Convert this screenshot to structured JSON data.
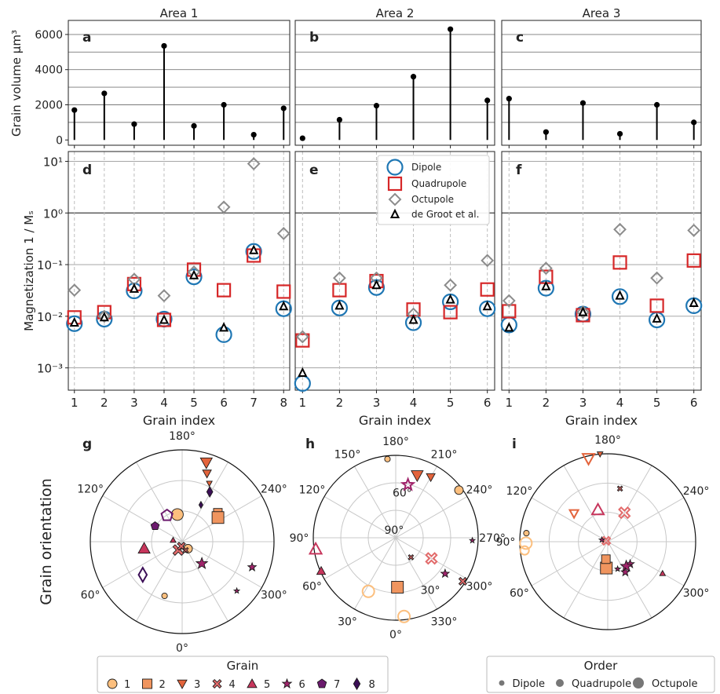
{
  "chart_data": {
    "type": "composite",
    "panels_top": [
      {
        "letter": "a",
        "title": "Area 1",
        "x": [
          1,
          2,
          3,
          4,
          5,
          6,
          7,
          8
        ],
        "volume": [
          1700,
          2650,
          900,
          5350,
          800,
          2000,
          300,
          1800
        ]
      },
      {
        "letter": "b",
        "title": "Area 2",
        "x": [
          1,
          2,
          3,
          4,
          5,
          6
        ],
        "volume": [
          100,
          1150,
          1950,
          3600,
          6300,
          2250
        ]
      },
      {
        "letter": "c",
        "title": "Area 3",
        "x": [
          1,
          2,
          3,
          4,
          5,
          6
        ],
        "volume": [
          2350,
          450,
          2100,
          350,
          2000,
          1000
        ]
      }
    ],
    "top_ylabel": "Grain volume  µm³",
    "top_ylim": [
      -300,
      6800
    ],
    "top_yticks": [
      "0",
      "2000",
      "4000",
      "6000"
    ],
    "top_ytick_values": [
      0,
      2000,
      4000,
      6000
    ],
    "top_grid": [
      1000,
      2000,
      3000,
      4000,
      5000,
      6000
    ],
    "panels_mid": [
      {
        "letter": "d",
        "x": [
          1,
          2,
          3,
          4,
          5,
          6,
          7,
          8
        ],
        "dipole": [
          0.0072,
          0.0088,
          0.031,
          0.0088,
          0.058,
          0.0044,
          0.18,
          0.014
        ],
        "quadrupole": [
          0.0095,
          0.012,
          0.042,
          0.0085,
          0.08,
          0.032,
          0.15,
          0.03
        ],
        "octupole": [
          0.032,
          0.01,
          0.052,
          0.025,
          0.072,
          1.3,
          9.0,
          0.4
        ],
        "degroot": [
          0.0075,
          0.0095,
          0.034,
          0.0085,
          0.062,
          0.006,
          0.19,
          0.0155
        ]
      },
      {
        "letter": "e",
        "x": [
          1,
          2,
          3,
          4,
          5,
          6
        ],
        "dipole": [
          0.0005,
          0.0145,
          0.036,
          0.0075,
          0.019,
          0.014
        ],
        "quadrupole": [
          0.0034,
          0.032,
          0.048,
          0.0135,
          0.012,
          0.033
        ],
        "octupole": [
          0.004,
          0.055,
          0.055,
          0.011,
          0.04,
          0.12
        ],
        "degroot": [
          0.0008,
          0.016,
          0.04,
          0.0085,
          0.021,
          0.0155
        ]
      },
      {
        "letter": "f",
        "x": [
          1,
          2,
          3,
          4,
          5,
          6
        ],
        "dipole": [
          0.0068,
          0.035,
          0.011,
          0.024,
          0.0085,
          0.016
        ],
        "quadrupole": [
          0.0125,
          0.058,
          0.0105,
          0.11,
          0.016,
          0.12
        ],
        "octupole": [
          0.02,
          0.085,
          0.012,
          0.48,
          0.055,
          0.46
        ],
        "degroot": [
          0.006,
          0.038,
          0.012,
          0.025,
          0.009,
          0.018
        ]
      }
    ],
    "mid_ylabel": "Magnetization  1 / Mₛ",
    "mid_yticks": [
      "10⁻³",
      "10⁻²",
      "10⁻¹",
      "10⁰",
      "10¹"
    ],
    "mid_ytick_exps": [
      -3,
      -2,
      -1,
      0,
      1
    ],
    "mid_reference_line": 1,
    "mid_xlabel": "Grain index",
    "legend_mid": [
      "Dipole",
      "Quadrupole",
      "Octupole",
      "de Groot et al."
    ],
    "polar_ylabel": "Grain orientation",
    "polar_panels": [
      {
        "letter": "g",
        "theta_labels": [
          "180°",
          "120°",
          "60°",
          "0°",
          "300°",
          "240°"
        ],
        "theta_angles": [
          180,
          120,
          60,
          0,
          300,
          240
        ],
        "r_labels": [],
        "points": [
          {
            "grain": 1,
            "order": 3,
            "az": 170,
            "rad": 0.3
          },
          {
            "grain": 1,
            "order": 1,
            "az": 18,
            "rad": 0.62
          },
          {
            "grain": 1,
            "order": 2,
            "az": 320,
            "rad": 0.1
          },
          {
            "grain": 2,
            "order": 2,
            "az": 231,
            "rad": 0.5
          },
          {
            "grain": 2,
            "order": 3,
            "az": 236,
            "rad": 0.47
          },
          {
            "grain": 3,
            "order": 3,
            "az": 197,
            "rad": 0.9
          },
          {
            "grain": 3,
            "order": 2,
            "az": 200,
            "rad": 0.79
          },
          {
            "grain": 3,
            "order": 1,
            "az": 205,
            "rad": 0.7
          },
          {
            "grain": 4,
            "order": 3,
            "az": 25,
            "rad": 0.1
          },
          {
            "grain": 4,
            "order": 2,
            "az": 10,
            "rad": 0.05
          },
          {
            "grain": 4,
            "order": 1,
            "az": 337,
            "rad": 0.1
          },
          {
            "grain": 5,
            "order": 3,
            "az": 80,
            "rad": 0.42
          },
          {
            "grain": 5,
            "order": 1,
            "az": 100,
            "rad": 0.1
          },
          {
            "grain": 6,
            "order": 3,
            "az": 318,
            "rad": 0.32
          },
          {
            "grain": 6,
            "order": 1,
            "az": 312,
            "rad": 0.8
          },
          {
            "grain": 6,
            "order": 2,
            "az": 290,
            "rad": 0.81
          },
          {
            "grain": 7,
            "order": 3,
            "az": 150,
            "rad": 0.33
          },
          {
            "grain": 7,
            "order": 2,
            "az": 120,
            "rad": 0.34
          },
          {
            "grain": 8,
            "order": 3,
            "az": 50,
            "rad": 0.56
          },
          {
            "grain": 8,
            "order": 2,
            "az": 209,
            "rad": 0.62
          },
          {
            "grain": 8,
            "order": 1,
            "az": 207,
            "rad": 0.45
          }
        ]
      },
      {
        "letter": "h",
        "theta_labels": [
          "180°",
          "150°",
          "120°",
          "90°",
          "60°",
          "30°",
          "0°",
          "330°",
          "300°",
          "270°",
          "240°",
          "210°"
        ],
        "theta_angles": [
          180,
          150,
          120,
          90,
          60,
          30,
          0,
          330,
          300,
          270,
          240,
          210
        ],
        "r_labels": [
          "30°",
          "60°",
          "90°"
        ],
        "points": [
          {
            "grain": 1,
            "order": 1,
            "az": 174,
            "rad": 0.96
          },
          {
            "grain": 1,
            "order": 2,
            "az": 233,
            "rad": 0.96
          },
          {
            "grain": 1,
            "order": 3,
            "az": 354,
            "rad": 0.96
          },
          {
            "grain": 2,
            "order": 3,
            "az": 358,
            "rad": 0.6
          },
          {
            "grain": 3,
            "order": 3,
            "az": 199,
            "rad": 0.8
          },
          {
            "grain": 3,
            "order": 2,
            "az": 210,
            "rad": 0.85
          },
          {
            "grain": 5,
            "order": 3,
            "az": 82,
            "rad": 0.98
          },
          {
            "grain": 5,
            "order": 2,
            "az": 66,
            "rad": 0.99
          },
          {
            "grain": 6,
            "order": 3,
            "az": 193,
            "rad": 0.66
          },
          {
            "grain": 6,
            "order": 1,
            "az": 272,
            "rad": 0.93
          },
          {
            "grain": 6,
            "order": 2,
            "az": 306,
            "rad": 0.74
          },
          {
            "grain": 4,
            "order": 3,
            "az": 300,
            "rad": 0.5
          },
          {
            "grain": 4,
            "order": 2,
            "az": 303,
            "rad": 0.97
          },
          {
            "grain": 4,
            "order": 1,
            "az": 322,
            "rad": 0.3
          },
          {
            "grain": 1,
            "order": 3,
            "az": 27,
            "rad": 0.73
          }
        ]
      },
      {
        "letter": "i",
        "theta_labels": [
          "180°",
          "120°",
          "90°",
          "60°",
          "300°",
          "240°"
        ],
        "theta_angles": [
          180,
          120,
          90,
          60,
          300,
          240
        ],
        "r_labels": [],
        "points": [
          {
            "grain": 1,
            "order": 3,
            "az": 89,
            "rad": 0.93
          },
          {
            "grain": 1,
            "order": 2,
            "az": 84,
            "rad": 0.95
          },
          {
            "grain": 1,
            "order": 1,
            "az": 96,
            "rad": 0.93
          },
          {
            "grain": 2,
            "order": 3,
            "az": 3,
            "rad": 0.3
          },
          {
            "grain": 2,
            "order": 2,
            "az": 6,
            "rad": 0.2
          },
          {
            "grain": 3,
            "order": 1,
            "az": 175,
            "rad": 1.0
          },
          {
            "grain": 3,
            "order": 3,
            "az": 167,
            "rad": 0.97
          },
          {
            "grain": 3,
            "order": 2,
            "az": 130,
            "rad": 0.5
          },
          {
            "grain": 4,
            "order": 3,
            "az": 210,
            "rad": 0.38
          },
          {
            "grain": 4,
            "order": 1,
            "az": 193,
            "rad": 0.62
          },
          {
            "grain": 4,
            "order": 2,
            "az": 120,
            "rad": 0.02
          },
          {
            "grain": 5,
            "order": 3,
            "az": 163,
            "rad": 0.38
          },
          {
            "grain": 5,
            "order": 1,
            "az": 300,
            "rad": 0.72
          },
          {
            "grain": 6,
            "order": 1,
            "az": 108,
            "rad": 0.07
          },
          {
            "grain": 6,
            "order": 2,
            "az": 315,
            "rad": 0.36
          },
          {
            "grain": 6,
            "order": 3,
            "az": 323,
            "rad": 0.35
          },
          {
            "grain": 6,
            "order": 1,
            "az": 340,
            "rad": 0.33
          },
          {
            "grain": 6,
            "order": 2,
            "az": 330,
            "rad": 0.4
          }
        ]
      }
    ],
    "legend_grain": {
      "title": "Grain",
      "labels": [
        "1",
        "2",
        "3",
        "4",
        "5",
        "6",
        "7",
        "8"
      ]
    },
    "legend_order": {
      "title": "Order",
      "labels": [
        "Dipole",
        "Quadrupole",
        "Octupole"
      ]
    },
    "colors": {
      "dipole": "#1f77b4",
      "quadrupole": "#d62728",
      "octupole": "#8c8c8c",
      "degroot": "#000000",
      "grains": [
        "#fcbf7e",
        "#f0955f",
        "#e3643c",
        "#e26b6b",
        "#c7365c",
        "#a0246b",
        "#6b1a6d",
        "#3c0f57"
      ]
    }
  }
}
